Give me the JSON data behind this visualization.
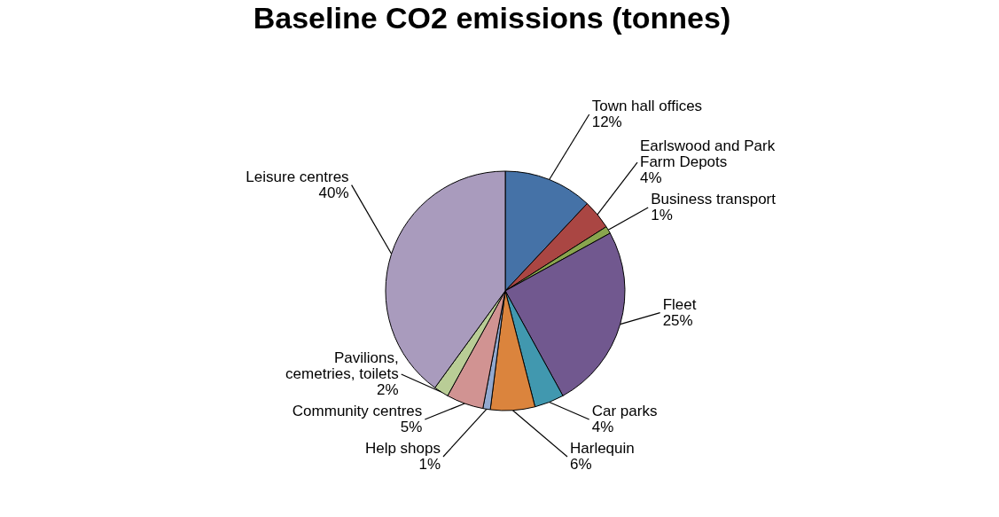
{
  "chart_data": {
    "type": "pie",
    "title": "Baseline CO2 emissions (tonnes)",
    "categories": [
      "Town hall offices",
      "Earlswood and Park Farm Depots",
      "Business transport",
      "Fleet",
      "Car parks",
      "Harlequin",
      "Help shops",
      "Community centres",
      "Pavilions, cemetries, toilets",
      "Leisure centres"
    ],
    "values": [
      12,
      4,
      1,
      25,
      4,
      6,
      1,
      5,
      2,
      40
    ],
    "value_labels": [
      "12%",
      "4%",
      "1%",
      "25%",
      "4%",
      "6%",
      "1%",
      "5%",
      "2%",
      "40%"
    ],
    "colors": [
      "#4572a7",
      "#aa4643",
      "#89a54e",
      "#71588f",
      "#4198af",
      "#db843d",
      "#93a9cf",
      "#d19392",
      "#b9cd96",
      "#a99bbd"
    ],
    "legend": false
  }
}
